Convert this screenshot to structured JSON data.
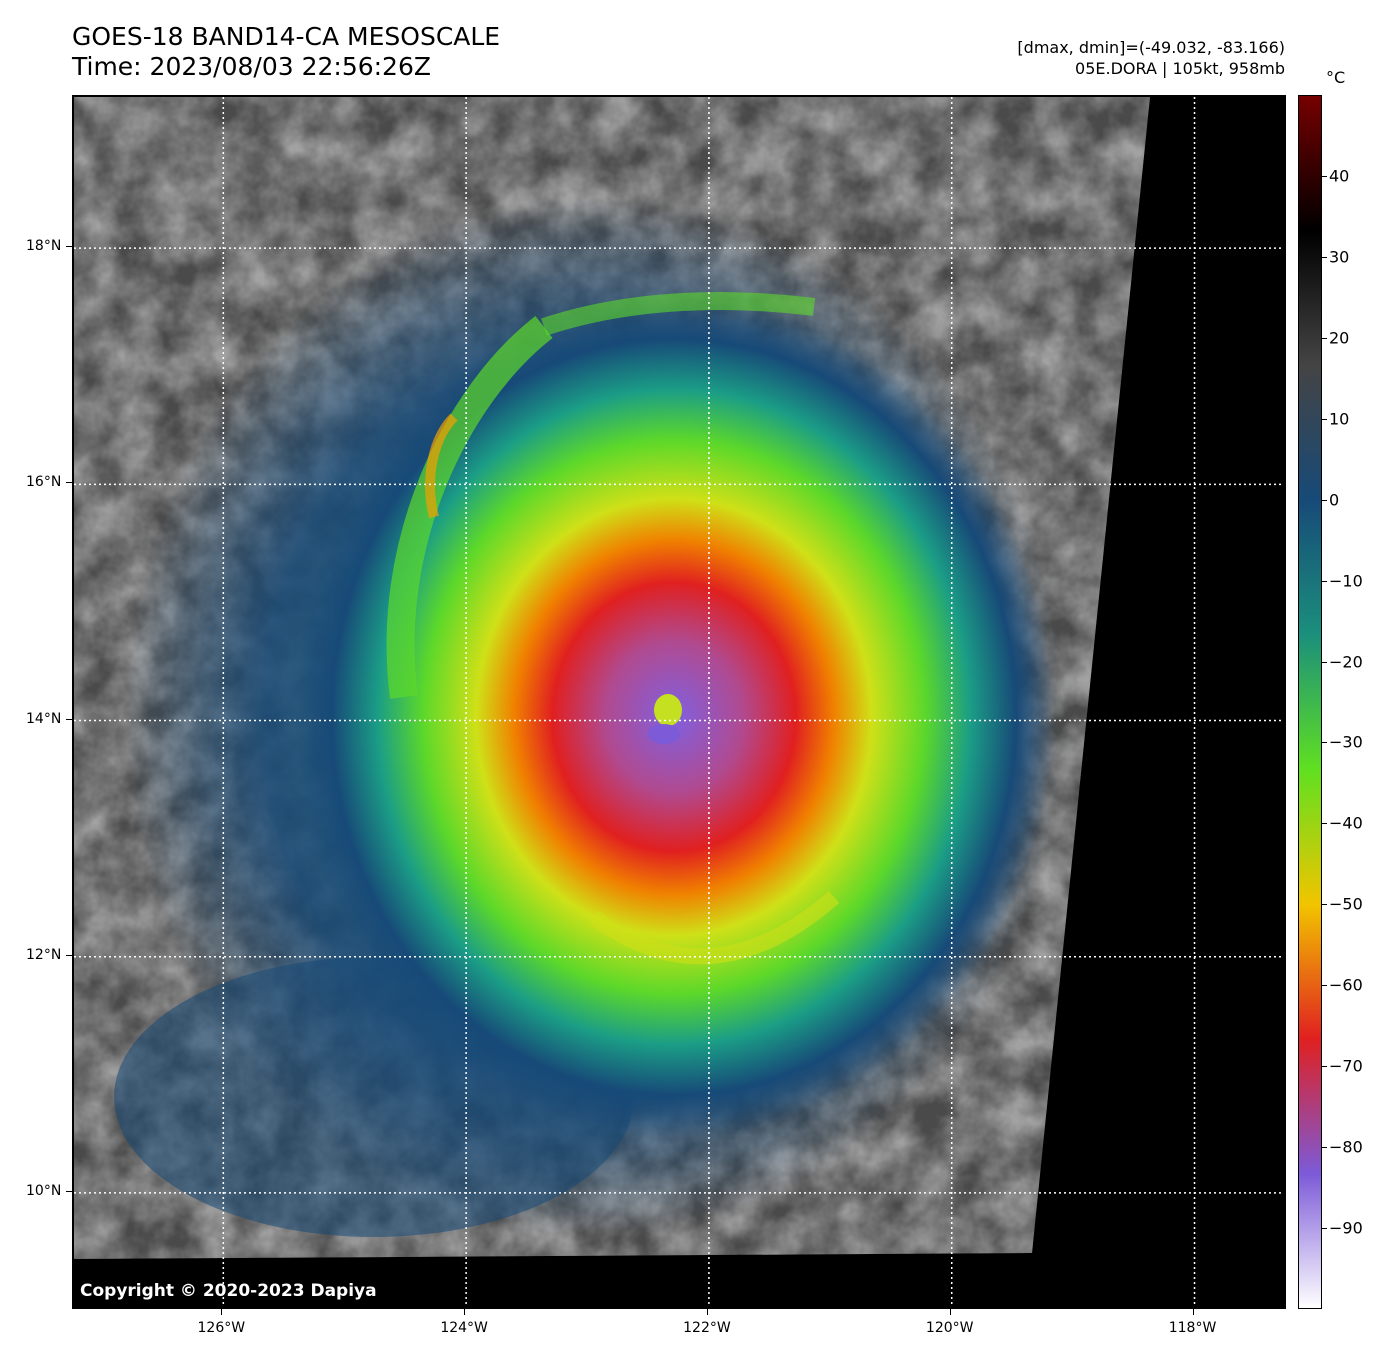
{
  "header": {
    "title_line1": "GOES-18 BAND14-CA MESOSCALE",
    "title_line2": "Time: 2023/08/03 22:56:26Z",
    "range_text": "[dmax, dmin]=(-49.032, -83.166)",
    "storm_text": "05E.DORA | 105kt, 958mb"
  },
  "map": {
    "copyright": "Copyright © 2020-2023 Dapiya",
    "lat_labels": [
      "18°N",
      "16°N",
      "14°N",
      "12°N",
      "10°N"
    ],
    "lon_labels": [
      "126°W",
      "124°W",
      "122°W",
      "120°W",
      "118°W"
    ],
    "lat_values": [
      18,
      16,
      14,
      12,
      10
    ],
    "lon_values": [
      -126,
      -124,
      -122,
      -120,
      -118
    ],
    "extent": {
      "lon_min": -127.23,
      "lon_max": -117.23,
      "lat_min": 9.0,
      "lat_max": 19.28
    },
    "storm_center": {
      "lon": -122.3,
      "lat": 14.2
    },
    "grid": "dotted white"
  },
  "colorbar": {
    "unit": "°C",
    "tick_labels": [
      "40",
      "30",
      "20",
      "10",
      "0",
      "−10",
      "−20",
      "−30",
      "−40",
      "−50",
      "−60",
      "−70",
      "−80",
      "−90"
    ],
    "tick_values": [
      40,
      30,
      20,
      10,
      0,
      -10,
      -20,
      -30,
      -40,
      -50,
      -60,
      -70,
      -80,
      -90
    ],
    "range": [
      -100,
      50
    ],
    "colors": [
      "#ffffff",
      "#7c5ad8",
      "#e02020",
      "#f2c400",
      "#60e020",
      "#1b8f7c",
      "#174a78",
      "#444444",
      "#000000",
      "#760000"
    ]
  }
}
